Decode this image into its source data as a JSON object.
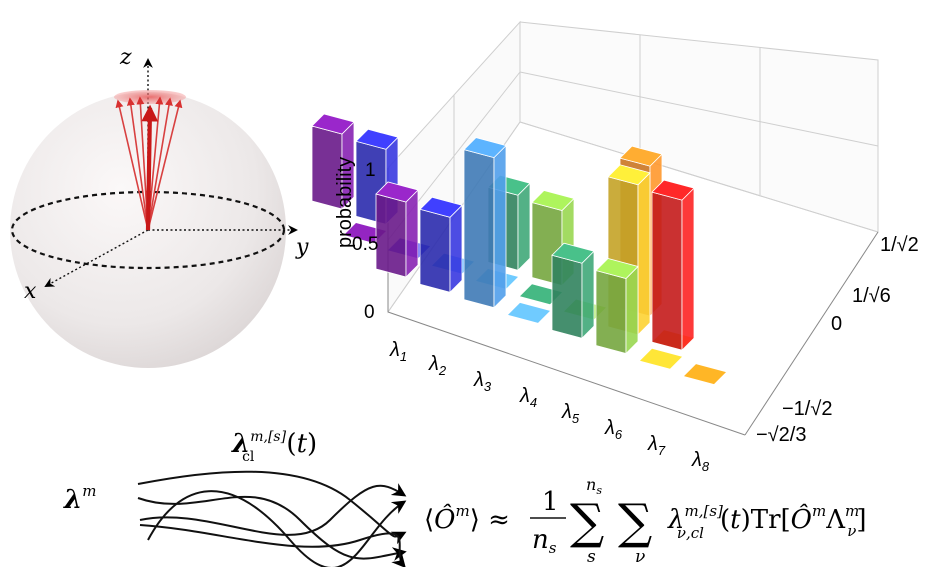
{
  "bloch": {
    "axis_x": "x",
    "axis_y": "y",
    "axis_z": "z",
    "vector_color": "#d62020",
    "sphere_color": "#eeeeee"
  },
  "chart_data": {
    "type": "bar",
    "zlabel": "probability",
    "z_ticks": [
      "0",
      "0.5",
      "1"
    ],
    "zlim": [
      0,
      1.2
    ],
    "row_labels": [
      "λ1",
      "λ2",
      "λ3",
      "λ4",
      "λ5",
      "λ6",
      "λ7",
      "λ8"
    ],
    "column_labels": [
      "−√2/3",
      "−1/√2",
      "0",
      "1/√6",
      "1/√2"
    ],
    "column_values": [
      -0.8165,
      -0.7071,
      0,
      0.4082,
      0.7071
    ],
    "series": [
      {
        "row": 0,
        "color": "#7b1fa2",
        "values": [
          0,
          0,
          0.5,
          0,
          0.5
        ]
      },
      {
        "row": 1,
        "color": "#3333cc",
        "values": [
          0,
          0,
          0.5,
          0,
          0.5
        ]
      },
      {
        "row": 2,
        "color": "#4a90d6",
        "values": [
          0,
          0,
          1,
          0,
          0
        ]
      },
      {
        "row": 3,
        "color": "#5da9e0",
        "values": [
          0,
          0,
          0,
          0,
          0
        ]
      },
      {
        "row": 4,
        "color": "#3a9a6e",
        "values": [
          0,
          0,
          0.5,
          0,
          0.5
        ]
      },
      {
        "row": 5,
        "color": "#8bc34a",
        "values": [
          0,
          0,
          0.5,
          0,
          0.5
        ]
      },
      {
        "row": 6,
        "color": "#e6c02e",
        "values": [
          0,
          0,
          0,
          1,
          0
        ]
      },
      {
        "row": 7,
        "color": "#ff9820",
        "values": [
          0,
          0,
          0,
          0,
          0
        ]
      }
    ],
    "extra_bars": [
      {
        "row": 7,
        "col": 4,
        "value": 1,
        "color": "#ee8a28"
      },
      {
        "row": 7,
        "col": 3,
        "value": 1,
        "color": "#e62020"
      }
    ],
    "flat_tiles_color_last": "#ee2020"
  },
  "trajectories": {
    "label_left": "λ^m",
    "label_top": "λ_cl^{m,[s]}(t)"
  },
  "formula": {
    "lhs": "⟨Ô^m⟩ ≈",
    "frac_num": "1",
    "frac_den": "n_s",
    "sum1_top": "n_s",
    "sum1_bottom": "s",
    "sum2_bottom": "ν",
    "term": "λ_{ν,cl}^{m,[s]}(t) Tr[Ô^m Λ_ν^m]"
  }
}
